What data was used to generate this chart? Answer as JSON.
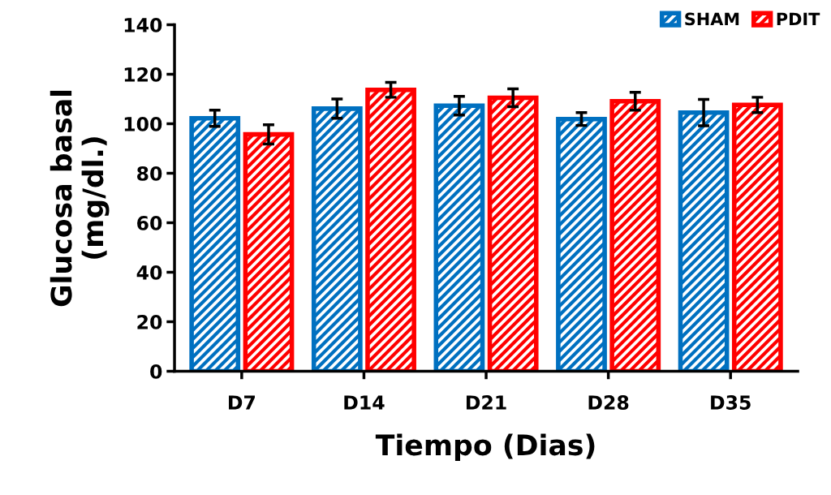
{
  "chart_data": {
    "type": "bar",
    "xlabel": "Tiempo (Dias)",
    "ylabel": "Glucosa basal\n(mg/dl.)",
    "categories": [
      "D7",
      "D14",
      "D21",
      "D28",
      "D35"
    ],
    "series": [
      {
        "name": "SHAM",
        "color": "#0070c0",
        "values": [
          102.2,
          106.1,
          107.3,
          101.9,
          104.5
        ],
        "errors": [
          3.3,
          3.9,
          3.8,
          2.6,
          5.3
        ]
      },
      {
        "name": "PDIT",
        "color": "#ff0000",
        "values": [
          95.7,
          113.7,
          110.5,
          109.1,
          107.6
        ],
        "errors": [
          3.9,
          3.0,
          3.6,
          3.6,
          3.1
        ]
      }
    ],
    "ylim": [
      0,
      140
    ],
    "yticks": [
      0,
      20,
      40,
      60,
      80,
      100,
      120,
      140
    ],
    "grid": false,
    "legend": "top right"
  }
}
